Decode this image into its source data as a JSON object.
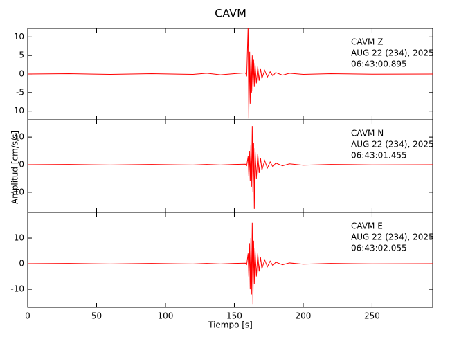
{
  "chart_data": {
    "type": "line",
    "title": "CAVM",
    "xlabel": "Tiempo [s]",
    "ylabel": "Amplitud [cm/s/s]",
    "xlim": [
      0,
      294
    ],
    "xticks": [
      0,
      50,
      100,
      150,
      200,
      250
    ],
    "x": [
      0,
      30,
      60,
      90,
      120,
      130,
      140,
      150,
      158,
      159,
      160,
      160.5,
      161,
      161.5,
      162,
      162.5,
      163,
      163.5,
      164,
      164.5,
      165,
      166,
      167,
      168,
      169,
      170,
      172,
      174,
      176,
      178,
      180,
      185,
      190,
      200,
      220,
      250,
      294
    ],
    "panels": [
      {
        "ylim": [
          -12.3,
          12.3
        ],
        "yticks": [
          -10,
          -5,
          0,
          5,
          10
        ],
        "annotations": [
          "CAVM   Z",
          "AUG 22 (234), 2025",
          "06:43:00.895"
        ],
        "series": [
          {
            "color": "#ff0000",
            "values": [
              0,
              0.1,
              -0.1,
              0.1,
              -0.1,
              0.2,
              -0.2,
              0.1,
              0.3,
              -0.4,
              13,
              -12,
              6,
              -8,
              6,
              -5,
              5,
              -4.5,
              4,
              -3.5,
              3,
              -2.5,
              2,
              -1.8,
              1.5,
              -1.2,
              1,
              -0.8,
              0.6,
              -0.5,
              0.4,
              -0.3,
              0.2,
              -0.1,
              0.1,
              -0.05,
              0
            ]
          }
        ]
      },
      {
        "ylim": [
          -17.3,
          16.3
        ],
        "yticks": [
          -10,
          0,
          10
        ],
        "annotations": [
          "CAVM   N",
          "AUG 22 (234), 2025",
          "06:43:01.455"
        ],
        "series": [
          {
            "color": "#ff0000",
            "values": [
              0,
              0.1,
              -0.1,
              0.1,
              -0.1,
              0.1,
              -0.1,
              0.1,
              0.2,
              -0.3,
              3,
              -4,
              5,
              -6,
              7,
              -8,
              14,
              -10,
              8,
              -16,
              6,
              -5,
              4,
              -3,
              2.5,
              -2,
              1.5,
              -1.2,
              1,
              -0.8,
              0.6,
              -0.4,
              0.3,
              -0.2,
              0.1,
              -0.05,
              0
            ]
          }
        ]
      },
      {
        "ylim": [
          -17,
          20
        ],
        "yticks": [
          -10,
          0,
          10
        ],
        "annotations": [
          "CAVM   E",
          "AUG 22 (234), 2025",
          "06:43:02.055"
        ],
        "series": [
          {
            "color": "#ff0000",
            "values": [
              0,
              0.1,
              -0.1,
              0.1,
              -0.1,
              0.1,
              -0.1,
              0.1,
              0.2,
              -0.3,
              4,
              -5,
              8,
              -10,
              10,
              -12,
              16,
              -16,
              9,
              -8,
              6,
              -5,
              4,
              -3,
              2.5,
              -2,
              1.5,
              -1.2,
              1,
              -0.8,
              0.6,
              -0.4,
              0.3,
              -0.2,
              0.1,
              -0.05,
              0
            ]
          }
        ]
      }
    ]
  }
}
